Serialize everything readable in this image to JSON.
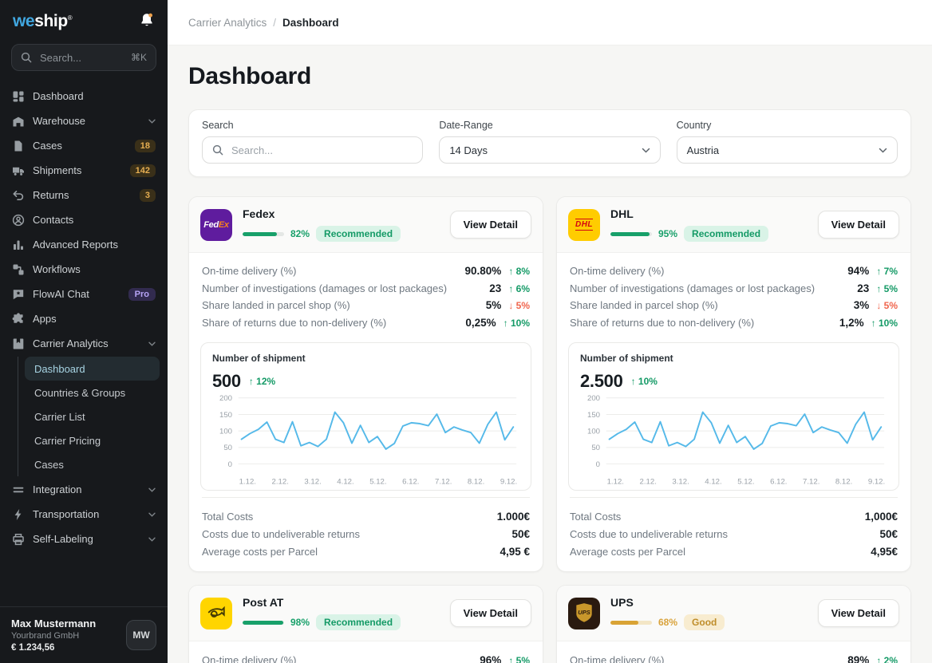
{
  "colors": {
    "accent_green": "#18a06a",
    "accent_red": "#f0654d",
    "accent_amber": "#d9a335",
    "chart_line": "#55b9e9",
    "sidebar_bg": "#17191c",
    "sidebar_active_text": "#a7d4e3",
    "fedex_purple": "#5f1c9e",
    "fedex_orange": "#f6821f",
    "dhl_yellow": "#ffcc00",
    "dhl_red": "#d40511",
    "post_yellow": "#ffd500",
    "ups_brown": "#2a1a10",
    "ups_gold": "#c9972b"
  },
  "sidebar": {
    "logo_we": "we",
    "logo_ship": "ship",
    "logo_reg": "®",
    "search_placeholder": "Search...",
    "search_shortcut": "⌘K",
    "nav": [
      {
        "label": "Dashboard",
        "icon": "dashboard-icon"
      },
      {
        "label": "Warehouse",
        "icon": "warehouse-icon",
        "chevron": true
      },
      {
        "label": "Cases",
        "icon": "cases-icon",
        "badge": "18"
      },
      {
        "label": "Shipments",
        "icon": "shipments-icon",
        "badge": "142"
      },
      {
        "label": "Returns",
        "icon": "returns-icon",
        "badge": "3"
      },
      {
        "label": "Contacts",
        "icon": "contacts-icon"
      },
      {
        "label": "Advanced Reports",
        "icon": "reports-icon"
      },
      {
        "label": "Workflows",
        "icon": "workflows-icon"
      },
      {
        "label": "FlowAI Chat",
        "icon": "flowai-chat-icon",
        "pro": "Pro"
      },
      {
        "label": "Apps",
        "icon": "apps-icon"
      },
      {
        "label": "Carrier Analytics",
        "icon": "carrier-analytics-icon",
        "chevron": true,
        "children": [
          {
            "label": "Dashboard",
            "active": true
          },
          {
            "label": "Countries & Groups"
          },
          {
            "label": "Carrier List"
          },
          {
            "label": "Carrier Pricing"
          },
          {
            "label": "Cases"
          }
        ]
      },
      {
        "label": "Integration",
        "icon": "integration-icon",
        "chevron": true
      },
      {
        "label": "Transportation",
        "icon": "transportation-icon",
        "chevron": true
      },
      {
        "label": "Self-Labeling",
        "icon": "self-labeling-icon",
        "chevron": true
      }
    ],
    "user": {
      "name": "Max Mustermann",
      "company": "Yourbrand GmbH",
      "balance": "€ 1.234,56",
      "initials": "MW"
    }
  },
  "topbar": {
    "breadcrumb_parent": "Carrier Analytics",
    "breadcrumb_sep": "/",
    "breadcrumb_current": "Dashboard"
  },
  "page_title": "Dashboard",
  "filters": {
    "search_label": "Search",
    "search_placeholder": "Search...",
    "date_label": "Date-Range",
    "date_value": "14 Days",
    "country_label": "Country",
    "country_value": "Austria"
  },
  "card_shared": {
    "view_detail": "View Detail",
    "metric_labels": [
      "On-time delivery (%)",
      "Number of investigations (damages or lost packages)",
      "Share landed in parcel shop (%)",
      "Share of returns due to non-delivery (%)"
    ],
    "cost_labels": [
      "Total Costs",
      "Costs due to undeliverable returns",
      "Average costs per Parcel"
    ]
  },
  "cards": [
    {
      "id": "fedex",
      "name": "Fedex",
      "tone": "green",
      "score_label": "82%",
      "score_pct": 82,
      "rating": "Recommended",
      "logo": {
        "bg": "#5f1c9e",
        "text_a": "Fed",
        "text_b": "Ex"
      },
      "metrics": [
        {
          "value": "90.80%",
          "delta": "8%",
          "dir": "up"
        },
        {
          "value": "23",
          "delta": "6%",
          "dir": "up"
        },
        {
          "value": "5%",
          "delta": "5%",
          "dir": "down"
        },
        {
          "value": "0,25%",
          "delta": "10%",
          "dir": "up"
        }
      ],
      "chart_index": 0,
      "costs": [
        "1.000€",
        "50€",
        "4,95 €"
      ]
    },
    {
      "id": "dhl",
      "name": "DHL",
      "tone": "green",
      "score_label": "95%",
      "score_pct": 95,
      "rating": "Recommended",
      "logo": {
        "bg": "#ffcc00",
        "text": "DHL"
      },
      "metrics": [
        {
          "value": "94%",
          "delta": "7%",
          "dir": "up"
        },
        {
          "value": "23",
          "delta": "5%",
          "dir": "up"
        },
        {
          "value": "3%",
          "delta": "5%",
          "dir": "down"
        },
        {
          "value": "1,2%",
          "delta": "10%",
          "dir": "up"
        }
      ],
      "chart_index": 1,
      "costs": [
        "1,000€",
        "50€",
        "4,95€"
      ]
    },
    {
      "id": "post-at",
      "name": "Post AT",
      "tone": "green",
      "score_label": "98%",
      "score_pct": 98,
      "rating": "Recommended",
      "logo": {
        "bg": "#ffd500",
        "glyph": "post-horn"
      },
      "metrics": [
        {
          "value": "96%",
          "delta": "5%",
          "dir": "up"
        }
      ]
    },
    {
      "id": "ups",
      "name": "UPS",
      "tone": "amber",
      "score_label": "68%",
      "score_pct": 68,
      "rating": "Good",
      "logo": {
        "bg": "#2a1a10",
        "text": "UPS"
      },
      "metrics": [
        {
          "value": "89%",
          "delta": "2%",
          "dir": "up"
        }
      ]
    }
  ],
  "chart_data": [
    {
      "type": "line",
      "title": "Number of shipment",
      "carrier": "Fedex",
      "total": "500",
      "trend_delta": "12%",
      "trend_dir": "up",
      "x_labels": [
        "1.12.",
        "2.12.",
        "3.12.",
        "4.12.",
        "5.12.",
        "6.12.",
        "7.12.",
        "8.12.",
        "9.12."
      ],
      "ylim": [
        0,
        200
      ],
      "y_ticks": [
        0,
        50,
        100,
        150,
        200
      ],
      "grid": true,
      "line_color": "#55b9e9",
      "values": [
        75,
        92,
        105,
        127,
        75,
        65,
        128,
        55,
        65,
        53,
        75,
        157,
        125,
        63,
        117,
        65,
        83,
        45,
        62,
        115,
        125,
        122,
        116,
        151,
        95,
        112,
        103,
        95,
        63,
        120,
        157,
        73,
        112
      ]
    },
    {
      "type": "line",
      "title": "Number of shipment",
      "carrier": "DHL",
      "total": "2.500",
      "trend_delta": "10%",
      "trend_dir": "up",
      "x_labels": [
        "1.12.",
        "2.12.",
        "3.12.",
        "4.12.",
        "5.12.",
        "6.12.",
        "7.12.",
        "8.12.",
        "9.12."
      ],
      "ylim": [
        0,
        200
      ],
      "y_ticks": [
        0,
        50,
        100,
        150,
        200
      ],
      "grid": true,
      "line_color": "#55b9e9",
      "values": [
        75,
        92,
        105,
        127,
        75,
        65,
        128,
        55,
        65,
        53,
        75,
        157,
        125,
        63,
        117,
        65,
        83,
        45,
        62,
        115,
        125,
        122,
        116,
        151,
        95,
        112,
        103,
        95,
        63,
        120,
        157,
        73,
        112
      ]
    }
  ]
}
